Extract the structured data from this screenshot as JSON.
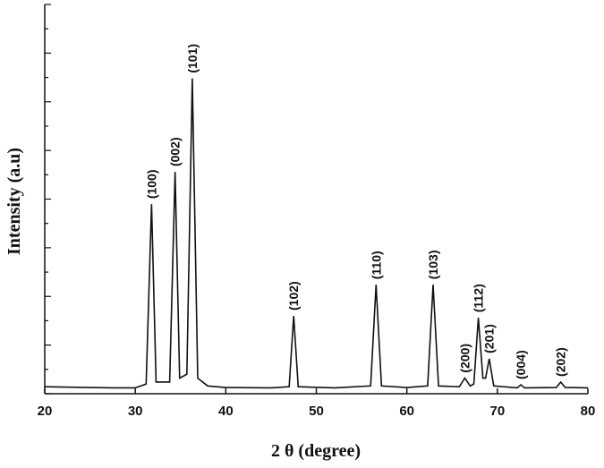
{
  "chart_data": {
    "type": "line",
    "xlabel": "2 θ (degree)",
    "ylabel": "Intensity (a.u)",
    "xlim": [
      20,
      80
    ],
    "xticks": [
      20,
      30,
      40,
      50,
      60,
      70,
      80
    ],
    "ylim": [
      0,
      100
    ],
    "yticks": [
      0,
      6.25,
      12.5,
      18.75,
      25,
      31.25,
      37.5,
      43.75,
      50,
      56.25,
      62.5,
      68.75,
      75,
      81.25,
      87.5,
      93.75,
      100
    ],
    "color": "#111111",
    "x": [
      20,
      25,
      28,
      30,
      31.2,
      31.8,
      32.3,
      33.8,
      34.4,
      34.9,
      35.7,
      36.3,
      36.9,
      38,
      40,
      45,
      47,
      47.5,
      48,
      52,
      56,
      56.6,
      57.2,
      60,
      62.3,
      62.9,
      63.5,
      65.8,
      66.4,
      67,
      67.4,
      67.9,
      68.4,
      68.7,
      69.1,
      69.6,
      72.2,
      72.6,
      73,
      76.5,
      77,
      77.5,
      80
    ],
    "values": [
      1.8,
      1.6,
      1.5,
      1.5,
      2.5,
      48.7,
      3,
      3,
      57,
      4,
      5,
      81,
      4,
      2,
      1.6,
      1.5,
      1.8,
      20,
      1.8,
      1.5,
      2,
      28,
      2,
      1.6,
      2,
      28,
      2,
      1.8,
      4,
      2,
      2.5,
      19.5,
      4,
      4,
      9,
      2,
      1.5,
      2.3,
      1.5,
      1.6,
      3,
      1.6,
      1.5
    ],
    "annotations": [
      {
        "text": "(100)",
        "x": 31.8
      },
      {
        "text": "(002)",
        "x": 34.4
      },
      {
        "text": "(101)",
        "x": 36.3
      },
      {
        "text": "(102)",
        "x": 47.5
      },
      {
        "text": "(110)",
        "x": 56.6
      },
      {
        "text": "(103)",
        "x": 62.9
      },
      {
        "text": "(200)",
        "x": 66.4
      },
      {
        "text": "(112)",
        "x": 67.9
      },
      {
        "text": "(201)",
        "x": 69.1
      },
      {
        "text": "(004)",
        "x": 72.6
      },
      {
        "text": "(202)",
        "x": 77
      }
    ]
  }
}
